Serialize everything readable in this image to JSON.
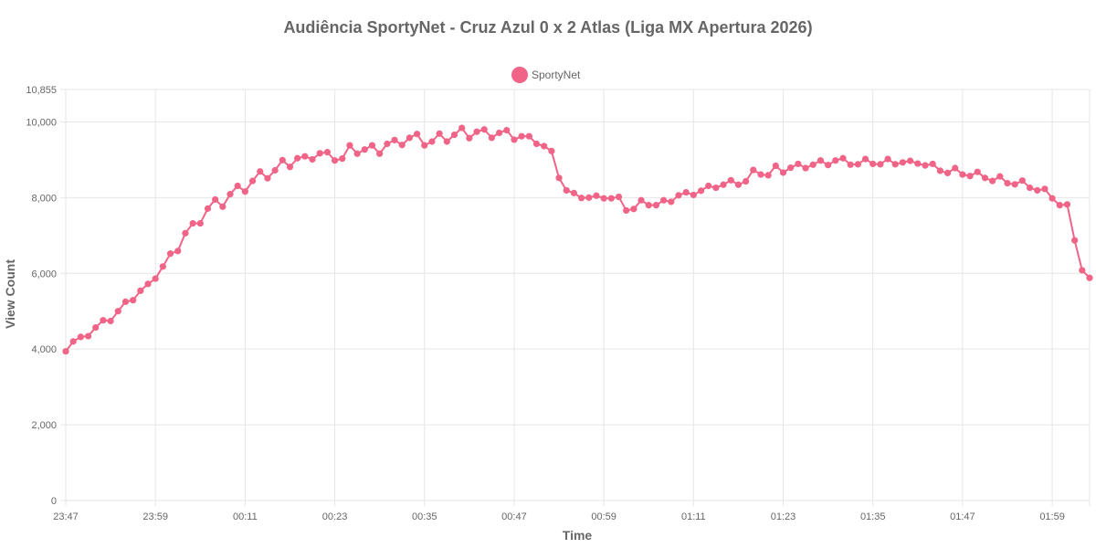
{
  "chart_data": {
    "type": "line",
    "title": "Audiência SportyNet - Cruz Azul 0 x 2 Atlas (Liga MX Apertura 2026)",
    "xlabel": "Time",
    "ylabel": "View Count",
    "ylim": [
      0,
      10855
    ],
    "y_ticks": [
      "0",
      "2,000",
      "4,000",
      "6,000",
      "8,000",
      "10,000",
      "10,855"
    ],
    "y_tick_values": [
      0,
      2000,
      4000,
      6000,
      8000,
      10000,
      10855
    ],
    "x_ticks": [
      "23:47",
      "23:59",
      "00:11",
      "00:23",
      "00:35",
      "00:47",
      "00:59",
      "01:11",
      "01:23",
      "01:35",
      "01:47",
      "01:59"
    ],
    "grid": true,
    "legend_position": "top",
    "colors": {
      "series": "#f06488",
      "grid": "#e6e6e6",
      "text": "#666666"
    },
    "series": [
      {
        "name": "SportyNet",
        "values": [
          3940,
          4200,
          4320,
          4340,
          4570,
          4760,
          4740,
          5000,
          5250,
          5290,
          5540,
          5720,
          5860,
          6180,
          6520,
          6590,
          7060,
          7320,
          7320,
          7710,
          7950,
          7760,
          8090,
          8310,
          8160,
          8440,
          8690,
          8510,
          8720,
          8990,
          8810,
          9040,
          9090,
          9010,
          9170,
          9200,
          8980,
          9030,
          9380,
          9160,
          9270,
          9380,
          9160,
          9420,
          9520,
          9390,
          9580,
          9680,
          9380,
          9480,
          9690,
          9480,
          9660,
          9840,
          9570,
          9740,
          9800,
          9580,
          9710,
          9780,
          9530,
          9620,
          9620,
          9420,
          9360,
          9230,
          8520,
          8190,
          8120,
          7990,
          8000,
          8050,
          7980,
          7980,
          8020,
          7660,
          7700,
          7930,
          7800,
          7800,
          7930,
          7890,
          8060,
          8140,
          8070,
          8180,
          8310,
          8260,
          8340,
          8460,
          8340,
          8430,
          8730,
          8610,
          8590,
          8840,
          8660,
          8790,
          8890,
          8780,
          8870,
          8980,
          8860,
          8980,
          9040,
          8870,
          8880,
          9020,
          8890,
          8880,
          9020,
          8880,
          8930,
          8970,
          8900,
          8850,
          8890,
          8710,
          8650,
          8780,
          8610,
          8570,
          8680,
          8520,
          8440,
          8560,
          8380,
          8350,
          8450,
          8260,
          8190,
          8230,
          7980,
          7800,
          7820,
          6870,
          6080,
          5880
        ]
      }
    ]
  }
}
